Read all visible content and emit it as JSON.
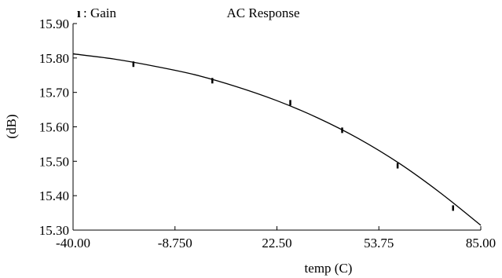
{
  "chart_data": {
    "type": "line",
    "title": "AC Response",
    "legend": {
      "marker_glyph": "ı",
      "label": ": Gain",
      "placement": "top-left"
    },
    "xlabel": "temp (C)",
    "ylabel": "(dB)",
    "xlim": [
      -40.0,
      85.0
    ],
    "ylim": [
      15.3,
      15.9
    ],
    "x_tick_labels": [
      "-40.00",
      "-8.750",
      "22.50",
      "53.75",
      "85.00"
    ],
    "x_ticks": [
      -40.0,
      -8.75,
      22.5,
      53.75,
      85.0
    ],
    "y_tick_labels": [
      "15.90",
      "15.80",
      "15.70",
      "15.60",
      "15.50",
      "15.40",
      "15.30"
    ],
    "y_ticks": [
      15.9,
      15.8,
      15.7,
      15.6,
      15.5,
      15.4,
      15.3
    ],
    "grid": false,
    "series": [
      {
        "name": "Gain",
        "color": "#000000",
        "x": [
          -40.0,
          -27.5,
          -15.0,
          -2.5,
          10.0,
          22.5,
          35.0,
          47.5,
          60.0,
          72.5,
          85.0
        ],
        "values": [
          15.812,
          15.797,
          15.776,
          15.751,
          15.717,
          15.676,
          15.626,
          15.566,
          15.494,
          15.409,
          15.314
        ],
        "markers_x": [
          -21.5,
          2.7,
          26.6,
          42.5,
          59.5,
          76.5
        ],
        "markers_y": [
          15.782,
          15.734,
          15.67,
          15.59,
          15.487,
          15.364
        ]
      }
    ]
  }
}
